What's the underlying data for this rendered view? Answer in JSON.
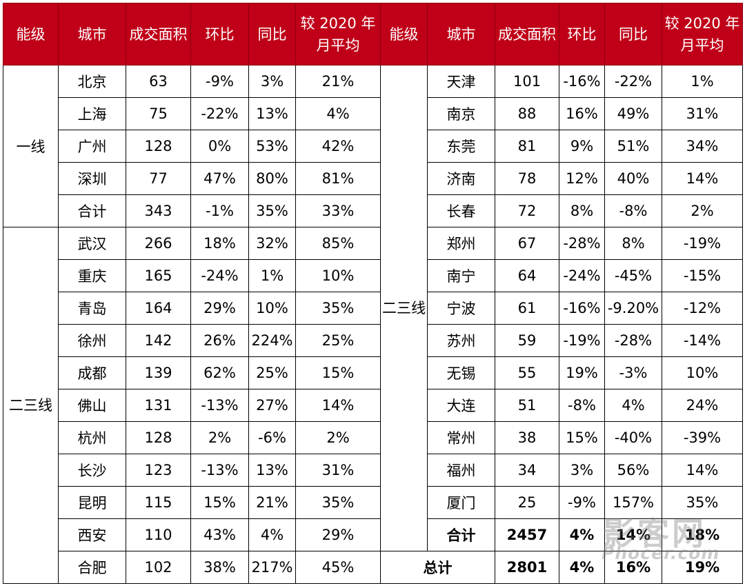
{
  "header": [
    "能级",
    "城市",
    "成交面积",
    "环比",
    "同比",
    "较 2020 年月平均",
    "能级",
    "城市",
    "成交面积",
    "环比",
    "同比",
    "较 2020 年月平均"
  ],
  "left": {
    "tier1_label": "一线",
    "tier1_rows": [
      [
        "北京",
        "63",
        "-9%",
        "3%",
        "21%"
      ],
      [
        "上海",
        "75",
        "-22%",
        "13%",
        "4%"
      ],
      [
        "广州",
        "128",
        "0%",
        "53%",
        "42%"
      ],
      [
        "深圳",
        "77",
        "47%",
        "80%",
        "81%"
      ],
      [
        "合计",
        "343",
        "-1%",
        "35%",
        "33%"
      ]
    ],
    "tier23_label": "二三线",
    "tier23_rows": [
      [
        "武汉",
        "266",
        "18%",
        "32%",
        "85%"
      ],
      [
        "重庆",
        "165",
        "-24%",
        "1%",
        "10%"
      ],
      [
        "青岛",
        "164",
        "29%",
        "10%",
        "35%"
      ],
      [
        "徐州",
        "142",
        "26%",
        "224%",
        "25%"
      ],
      [
        "成都",
        "139",
        "62%",
        "25%",
        "15%"
      ],
      [
        "佛山",
        "131",
        "-13%",
        "27%",
        "14%"
      ],
      [
        "杭州",
        "128",
        "2%",
        "-6%",
        "2%"
      ],
      [
        "长沙",
        "123",
        "-13%",
        "13%",
        "31%"
      ],
      [
        "昆明",
        "115",
        "15%",
        "21%",
        "35%"
      ],
      [
        "西安",
        "110",
        "43%",
        "4%",
        "29%"
      ],
      [
        "合肥",
        "102",
        "38%",
        "217%",
        "45%"
      ]
    ]
  },
  "right": {
    "tier_label": "二三线",
    "rows": [
      [
        "天津",
        "101",
        "-16%",
        "-22%",
        "1%"
      ],
      [
        "南京",
        "88",
        "16%",
        "49%",
        "31%"
      ],
      [
        "东莞",
        "81",
        "9%",
        "51%",
        "34%"
      ],
      [
        "济南",
        "78",
        "12%",
        "40%",
        "14%"
      ],
      [
        "长春",
        "72",
        "8%",
        "-8%",
        "2%"
      ],
      [
        "郑州",
        "67",
        "-28%",
        "8%",
        "-19%"
      ],
      [
        "南宁",
        "64",
        "-24%",
        "-45%",
        "-15%"
      ],
      [
        "宁波",
        "61",
        "-16%",
        "-9.20%",
        "-12%"
      ],
      [
        "苏州",
        "59",
        "-19%",
        "-28%",
        "-14%"
      ],
      [
        "无锡",
        "55",
        "19%",
        "-3%",
        "10%"
      ],
      [
        "大连",
        "51",
        "-8%",
        "4%",
        "24%"
      ],
      [
        "常州",
        "38",
        "15%",
        "-40%",
        "-39%"
      ],
      [
        "福州",
        "34",
        "3%",
        "56%",
        "14%"
      ],
      [
        "厦门",
        "25",
        "-9%",
        "157%",
        "35%"
      ]
    ],
    "subtotal": [
      "合计",
      "2457",
      "4%",
      "14%",
      "18%"
    ],
    "total": [
      "总计",
      "2801",
      "4%",
      "16%",
      "19%"
    ]
  },
  "watermark": {
    "line1": "影客网",
    "line2": "Phocer.com"
  },
  "colors": {
    "header_bg": "#c00018",
    "header_text": "#ffffff"
  }
}
